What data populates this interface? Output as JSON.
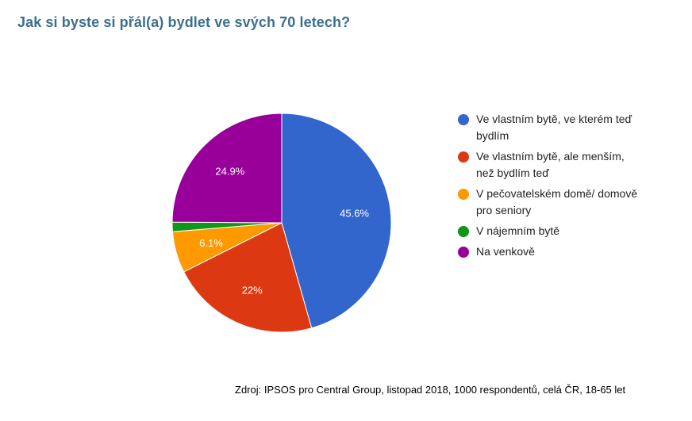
{
  "title": "Jak si byste si přál(a) bydlet ve svých 70 letech?",
  "source": "Zdroj: IPSOS pro Central Group, listopad 2018, 1000 respondentů, celá ČR, 18-65 let",
  "chart_data": {
    "type": "pie",
    "title": "Jak si byste si přál(a) bydlet ve svých 70 letech?",
    "legend_position": "right",
    "slices": [
      {
        "label": "Ve vlastním bytě, ve kterém teď bydlím",
        "value": 45.6,
        "data_label": "45.6%",
        "color": "#3366cc"
      },
      {
        "label": "Ve vlastním bytě, ale menším, než bydlím teď",
        "value": 22.0,
        "data_label": "22%",
        "color": "#dc3912"
      },
      {
        "label": "V pečovatelském domě/ domově pro seniory",
        "value": 6.1,
        "data_label": "6.1%",
        "color": "#ff9900"
      },
      {
        "label": "V nájemním bytě",
        "value": 1.4,
        "data_label": "",
        "color": "#109618"
      },
      {
        "label": "Na venkově",
        "value": 24.9,
        "data_label": "24.9%",
        "color": "#990099"
      }
    ]
  }
}
